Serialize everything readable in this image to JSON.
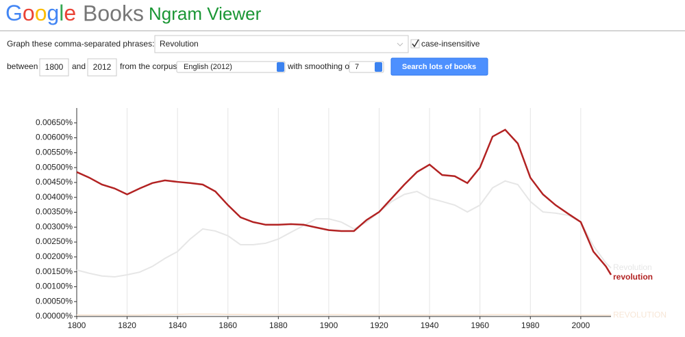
{
  "header": {
    "logo_google": "Google",
    "logo_books": "Books",
    "title": "Ngram Viewer"
  },
  "form": {
    "phrases_label": "Graph these comma-separated phrases:",
    "phrases_value": "Revolution",
    "case_checked": true,
    "case_label": "case-insensitive",
    "between_label": "between",
    "start_year": "1800",
    "and_label": "and",
    "end_year": "2012",
    "corpus_label": "from the corpus",
    "corpus_value": "English (2012)",
    "smoothing_label": "with smoothing of",
    "smoothing_value": "7",
    "button": "Search lots of books"
  },
  "chart_data": {
    "type": "line",
    "x": [
      1800,
      1805,
      1810,
      1815,
      1820,
      1825,
      1830,
      1835,
      1840,
      1845,
      1850,
      1855,
      1860,
      1865,
      1870,
      1875,
      1880,
      1885,
      1890,
      1895,
      1900,
      1905,
      1910,
      1915,
      1920,
      1925,
      1930,
      1935,
      1940,
      1945,
      1950,
      1955,
      1960,
      1965,
      1970,
      1975,
      1980,
      1985,
      1990,
      1995,
      2000,
      2005,
      2010,
      2012
    ],
    "series": [
      {
        "name": "Revolution",
        "color": "#e6e6e6",
        "values": [
          0.00156,
          0.00145,
          0.00136,
          0.00133,
          0.0014,
          0.00149,
          0.00168,
          0.00195,
          0.00218,
          0.0026,
          0.00294,
          0.00287,
          0.00271,
          0.00241,
          0.00241,
          0.00246,
          0.0026,
          0.00283,
          0.00305,
          0.00328,
          0.00328,
          0.00317,
          0.00294,
          0.00317,
          0.00351,
          0.00386,
          0.0041,
          0.0042,
          0.00397,
          0.00386,
          0.00374,
          0.00351,
          0.00374,
          0.00432,
          0.00455,
          0.00443,
          0.00386,
          0.00351,
          0.00347,
          0.0034,
          0.00317,
          0.00237,
          0.00179,
          0.00163
        ]
      },
      {
        "name": "revolution",
        "color": "#b22222",
        "values": [
          0.00485,
          0.00466,
          0.00443,
          0.0043,
          0.0041,
          0.0043,
          0.00448,
          0.00457,
          0.00452,
          0.00448,
          0.00443,
          0.0042,
          0.00374,
          0.00333,
          0.00317,
          0.00308,
          0.00308,
          0.0031,
          0.00308,
          0.00299,
          0.0029,
          0.00287,
          0.00287,
          0.00324,
          0.00351,
          0.00397,
          0.00443,
          0.00485,
          0.0051,
          0.00475,
          0.00471,
          0.00448,
          0.005,
          0.00604,
          0.00627,
          0.00581,
          0.00466,
          0.0041,
          0.00374,
          0.00345,
          0.00317,
          0.00218,
          0.00168,
          0.0014
        ]
      },
      {
        "name": "REVOLUTION",
        "color": "#f7e6d6",
        "values": [
          5e-05,
          5e-05,
          5e-05,
          5e-05,
          5e-05,
          5e-05,
          6e-05,
          6e-05,
          7e-05,
          8e-05,
          8e-05,
          8e-05,
          7e-05,
          7e-05,
          6e-05,
          6e-05,
          6e-05,
          6e-05,
          6e-05,
          6e-05,
          6e-05,
          6e-05,
          5e-05,
          5e-05,
          5e-05,
          5e-05,
          5e-05,
          5e-05,
          5e-05,
          5e-05,
          5e-05,
          5e-05,
          5e-05,
          6e-05,
          6e-05,
          6e-05,
          5e-05,
          5e-05,
          4e-05,
          4e-05,
          4e-05,
          4e-05,
          4e-05,
          4e-05
        ]
      }
    ],
    "xlim": [
      1800,
      2012
    ],
    "xticks": [
      1800,
      1820,
      1840,
      1860,
      1880,
      1900,
      1920,
      1940,
      1960,
      1980,
      2000
    ],
    "ylim": [
      0,
      0.007
    ],
    "yticks": [
      {
        "value": 0,
        "label": "0.00000%"
      },
      {
        "value": 0.0005,
        "label": "0.00050%"
      },
      {
        "value": 0.001,
        "label": "0.00100%"
      },
      {
        "value": 0.0015,
        "label": "0.00150%"
      },
      {
        "value": 0.002,
        "label": "0.00200%"
      },
      {
        "value": 0.0025,
        "label": "0.00250%"
      },
      {
        "value": 0.003,
        "label": "0.00300%"
      },
      {
        "value": 0.0035,
        "label": "0.00350%"
      },
      {
        "value": 0.004,
        "label": "0.00400%"
      },
      {
        "value": 0.0045,
        "label": "0.00450%"
      },
      {
        "value": 0.005,
        "label": "0.00500%"
      },
      {
        "value": 0.0055,
        "label": "0.00550%"
      },
      {
        "value": 0.006,
        "label": "0.00600%"
      },
      {
        "value": 0.0065,
        "label": "0.00650%"
      }
    ],
    "grid": "x"
  }
}
